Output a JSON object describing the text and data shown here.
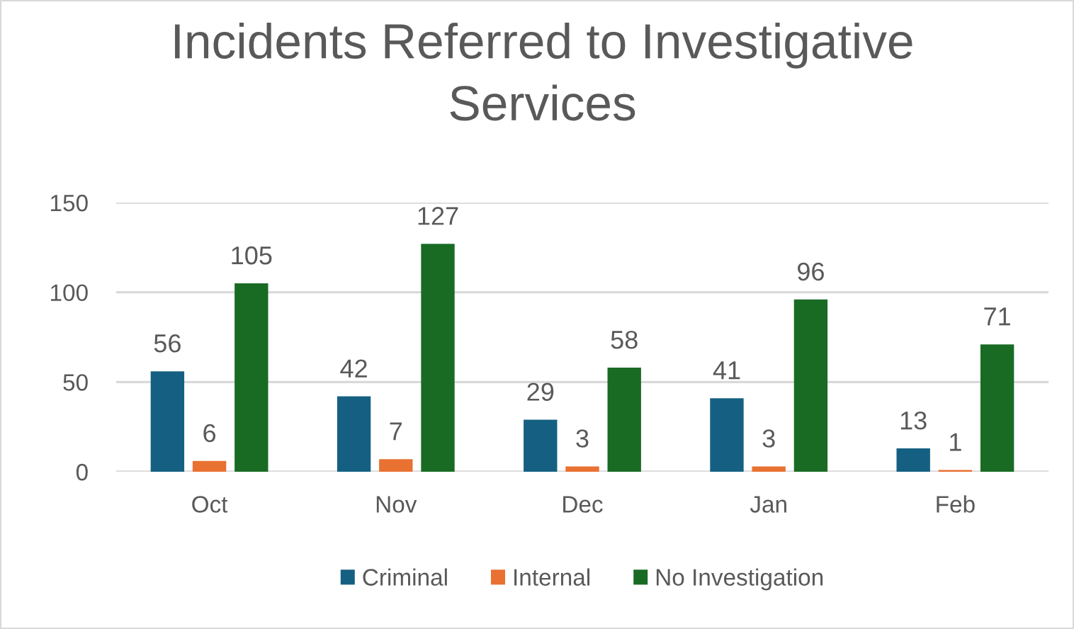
{
  "chart_data": {
    "type": "bar",
    "title": "Incidents Referred to Investigative\nServices",
    "categories": [
      "Oct",
      "Nov",
      "Dec",
      "Jan",
      "Feb"
    ],
    "series": [
      {
        "name": "Criminal",
        "color": "#156082",
        "values": [
          56,
          42,
          29,
          41,
          13
        ]
      },
      {
        "name": "Internal",
        "color": "#e97132",
        "values": [
          6,
          7,
          3,
          3,
          1
        ]
      },
      {
        "name": "No Investigation",
        "color": "#196b24",
        "values": [
          105,
          127,
          58,
          96,
          71
        ]
      }
    ],
    "ylim": [
      0,
      150
    ],
    "yticks": [
      0,
      50,
      100,
      150
    ],
    "grid": "y",
    "legend": "bottom",
    "data_labels": true
  }
}
